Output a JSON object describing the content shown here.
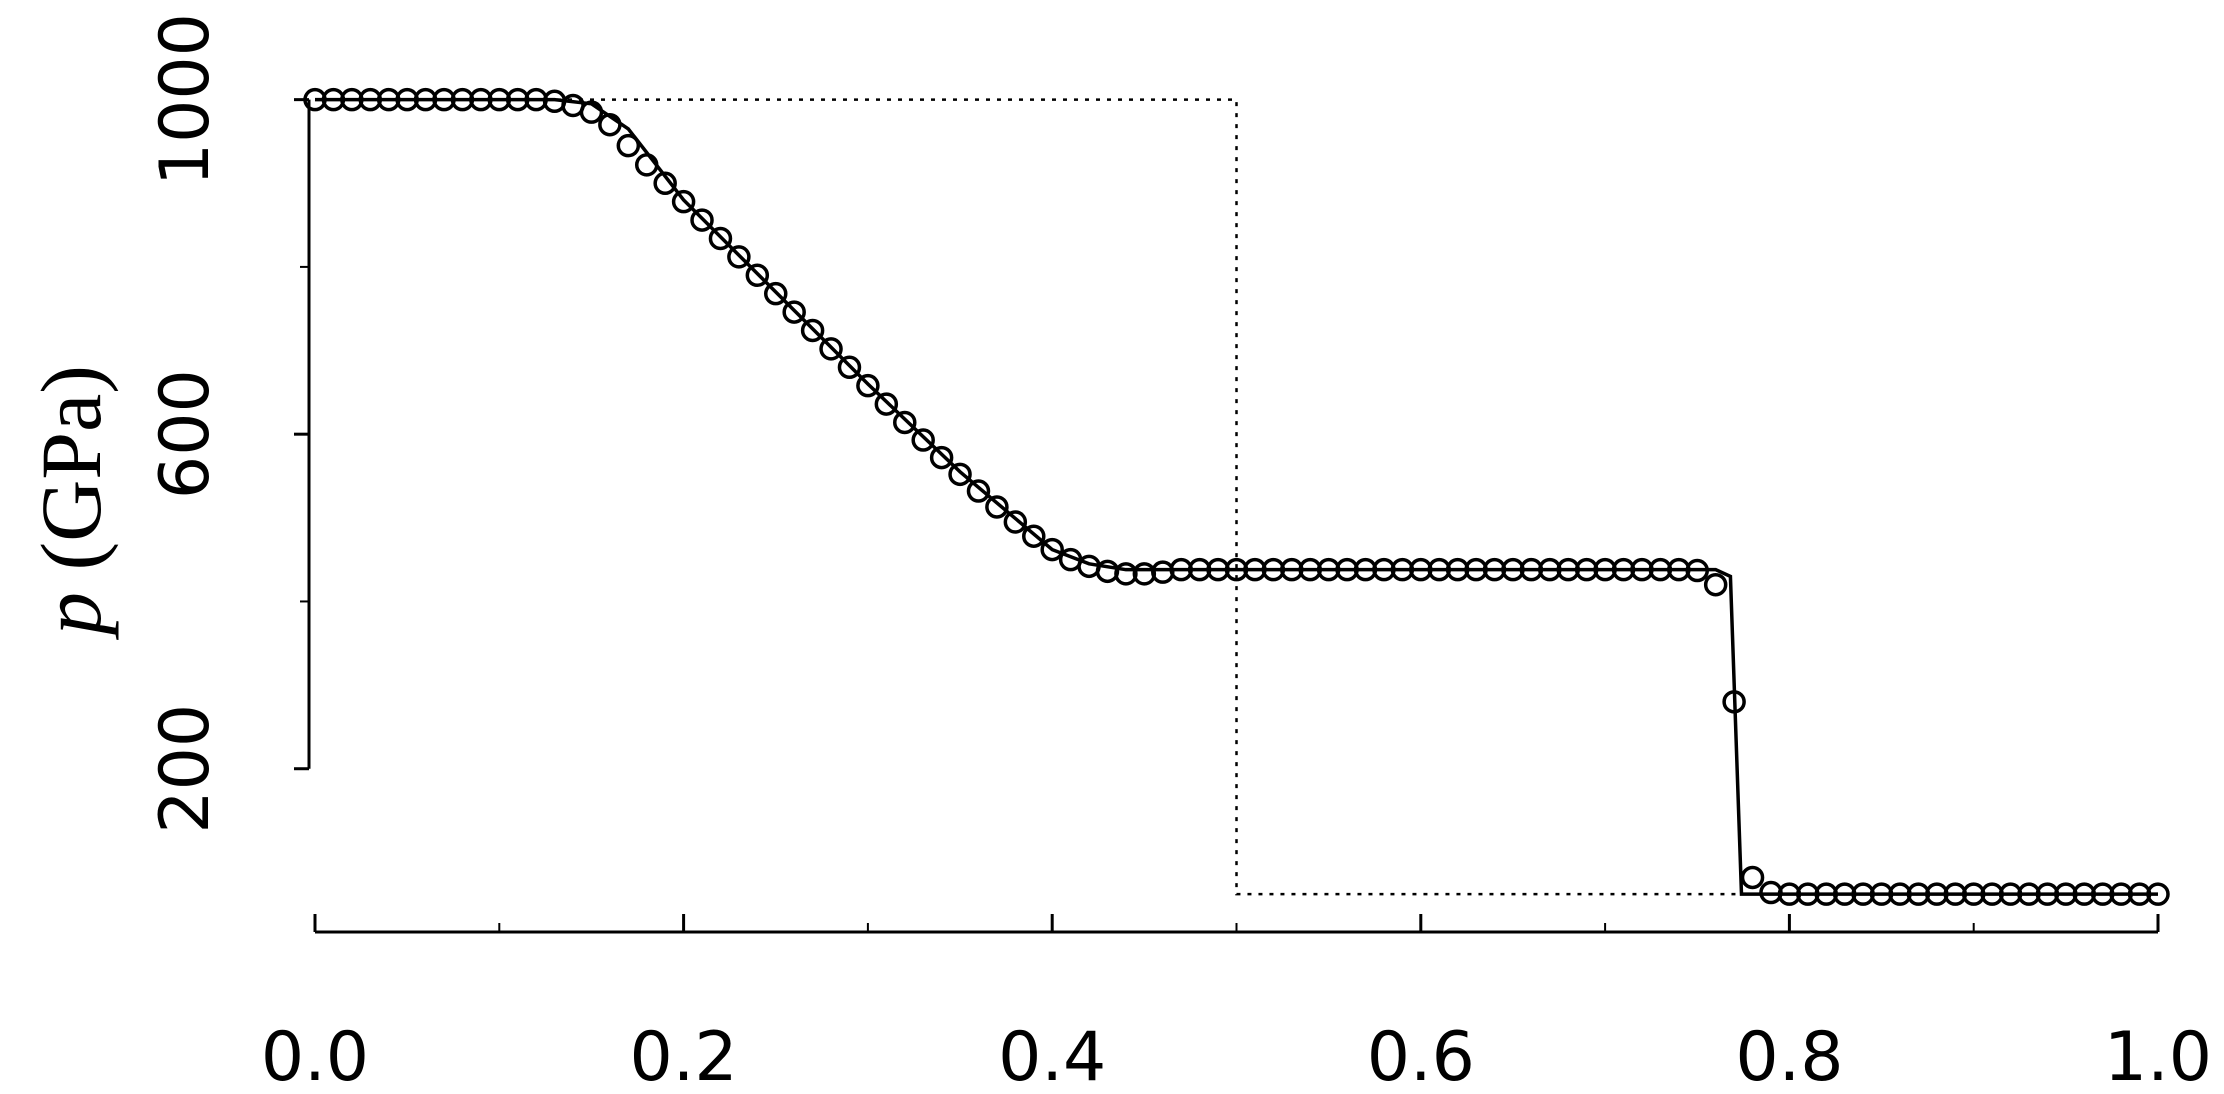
{
  "chart_data": {
    "type": "line",
    "ylabel": {
      "symbol": "p",
      "unit": "(GPa)"
    },
    "xlim": [
      0,
      1
    ],
    "ylim": [
      0,
      1100
    ],
    "xticks": [
      {
        "value": 0,
        "label": "0.0"
      },
      0.2,
      0.4,
      0.6,
      0.8,
      {
        "value": 1,
        "label": "1.0"
      }
    ],
    "xminor": [
      0.1,
      0.3,
      0.5,
      0.7,
      0.9
    ],
    "yticks": [
      200,
      600,
      1000
    ],
    "yminor": [
      400,
      800
    ],
    "series": [
      {
        "style": "dotted",
        "color": "#000000",
        "x": [
          0,
          0.5,
          0.5,
          1
        ],
        "values": [
          1000,
          1000,
          50,
          50
        ]
      },
      {
        "style": "solid",
        "color": "#000000",
        "x": [
          0,
          0.13,
          0.15,
          0.17,
          0.2,
          0.25,
          0.3,
          0.35,
          0.4,
          0.42,
          0.44,
          0.76,
          0.768,
          0.774,
          1
        ],
        "values": [
          1000,
          1000,
          995,
          965,
          880,
          770,
          660,
          555,
          462,
          445,
          438,
          438,
          430,
          50,
          50
        ]
      },
      {
        "style": "markers",
        "color": "#000000",
        "x": [
          0,
          0.01,
          0.02,
          0.03,
          0.04,
          0.05,
          0.06,
          0.07,
          0.08,
          0.09,
          0.1,
          0.11,
          0.12,
          0.13,
          0.14,
          0.15,
          0.16,
          0.17,
          0.18,
          0.19,
          0.2,
          0.21,
          0.22,
          0.23,
          0.24,
          0.25,
          0.26,
          0.27,
          0.28,
          0.29,
          0.3,
          0.31,
          0.32,
          0.33,
          0.34,
          0.35,
          0.36,
          0.37,
          0.38,
          0.39,
          0.4,
          0.41,
          0.42,
          0.43,
          0.44,
          0.45,
          0.46,
          0.47,
          0.48,
          0.49,
          0.5,
          0.51,
          0.52,
          0.53,
          0.54,
          0.55,
          0.56,
          0.57,
          0.58,
          0.59,
          0.6,
          0.61,
          0.62,
          0.63,
          0.64,
          0.65,
          0.66,
          0.67,
          0.68,
          0.69,
          0.7,
          0.71,
          0.72,
          0.73,
          0.74,
          0.75,
          0.76,
          0.77,
          0.78,
          0.79,
          0.8,
          0.81,
          0.82,
          0.83,
          0.84,
          0.85,
          0.86,
          0.87,
          0.88,
          0.89,
          0.9,
          0.91,
          0.92,
          0.93,
          0.94,
          0.95,
          0.96,
          0.97,
          0.98,
          0.99,
          1
        ],
        "values": [
          1000,
          1000,
          1000,
          1000,
          1000,
          1000,
          1000,
          1000,
          1000,
          1000,
          1000,
          1000,
          1000,
          998,
          993,
          985,
          970,
          945,
          922,
          900,
          878,
          856,
          834,
          812,
          790,
          768,
          746,
          724,
          702,
          680,
          658,
          636,
          614,
          593,
          572,
          552,
          532,
          513,
          495,
          478,
          462,
          450,
          442,
          436,
          433,
          433,
          435,
          438,
          438,
          438,
          438,
          438,
          438,
          438,
          438,
          438,
          438,
          438,
          438,
          438,
          438,
          438,
          438,
          438,
          438,
          438,
          438,
          438,
          438,
          438,
          438,
          438,
          438,
          438,
          438,
          437,
          420,
          280,
          70,
          52,
          50,
          50,
          50,
          50,
          50,
          50,
          50,
          50,
          50,
          50,
          50,
          50,
          50,
          50,
          50,
          50,
          50,
          50,
          50,
          50,
          50
        ]
      }
    ]
  }
}
